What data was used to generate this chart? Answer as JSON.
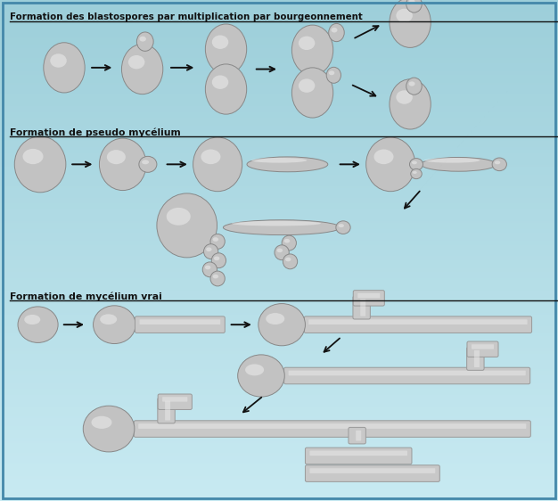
{
  "bg_color1": "#9dcfda",
  "bg_color2": "#c8eaf2",
  "border_color": "#4488aa",
  "title1": "Formation des blastospores par multiplication par bourgeonnement",
  "title2": "Formation de pseudo mycélium",
  "title3": "Formation de mycélium vrai",
  "cell_color": "#c2c2c2",
  "cell_edge": "#888888",
  "arrow_color": "#111111",
  "tube_color": "#c8c8c8",
  "tube_edge": "#999999",
  "tube_highlight": "#e8e8e8"
}
